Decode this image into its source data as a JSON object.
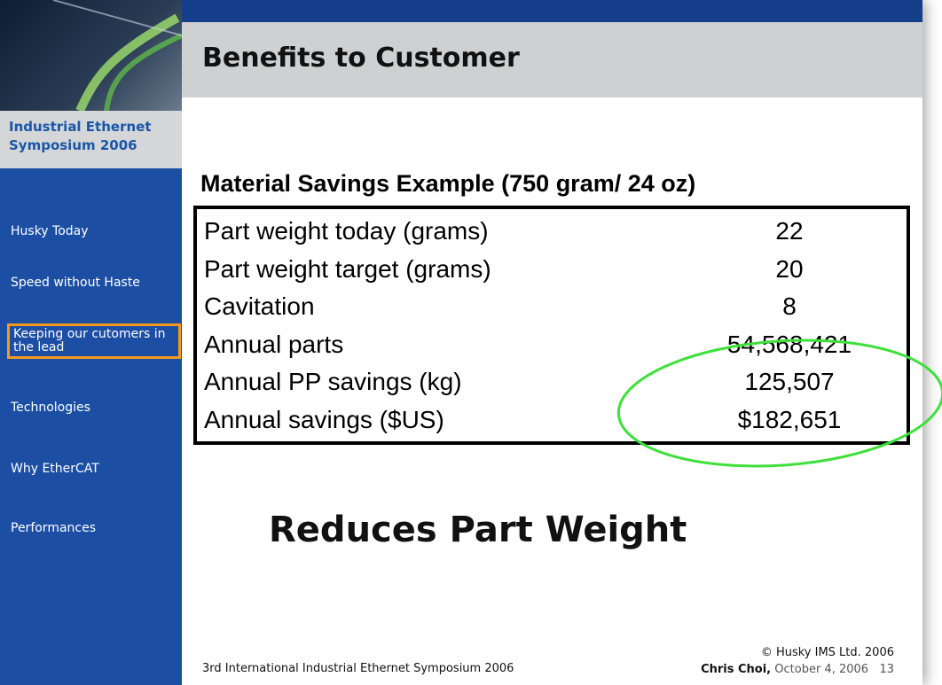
{
  "sidebar": {
    "event": "Industrial Ethernet Symposium 2006",
    "nav": [
      "Husky Today",
      "Speed without Haste",
      "Keeping our cutomers in the lead",
      "Technologies",
      "Why EtherCAT",
      "Performances"
    ]
  },
  "header": {
    "title": "Benefits to Customer"
  },
  "table": {
    "title": "Material Savings Example (750 gram/ 24 oz)",
    "rows": [
      [
        "Part weight today (grams)",
        "22"
      ],
      [
        "Part weight target (grams)",
        "20"
      ],
      [
        "Cavitation",
        "8"
      ],
      [
        "Annual parts",
        "54,568,421"
      ],
      [
        "Annual PP savings (kg)",
        "125,507"
      ],
      [
        "Annual savings ($US)",
        "$182,651"
      ]
    ]
  },
  "headline": "Reduces Part Weight",
  "footer": {
    "event": "3rd International Industrial Ethernet Symposium 2006",
    "copyright": "© Husky IMS Ltd. 2006",
    "author": "Chris Choi,",
    "date": "October 4, 2006",
    "page": "13"
  }
}
